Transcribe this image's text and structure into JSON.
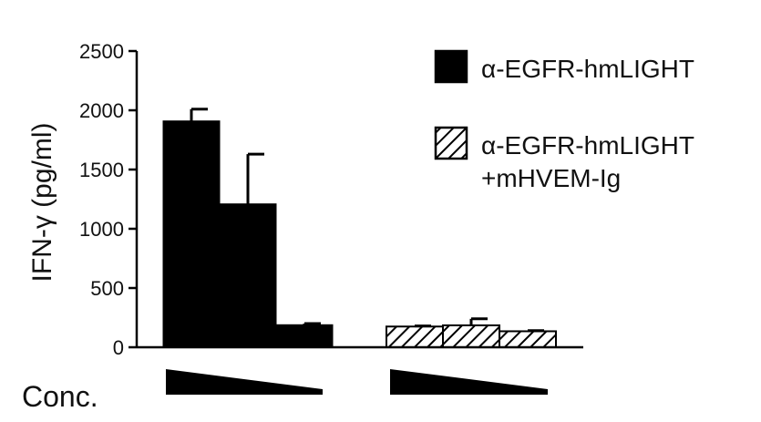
{
  "chart_data": {
    "type": "bar",
    "ylabel": "IFN-γ (pg/ml)",
    "xlabel": "Conc.",
    "ylim": [
      0,
      2500
    ],
    "yticks": [
      0,
      500,
      1000,
      1500,
      2000,
      2500
    ],
    "groups": [
      {
        "series": "α-EGFR-hmLIGHT",
        "values": [
          1910,
          1210,
          190
        ],
        "errors": [
          100,
          420,
          10
        ]
      },
      {
        "series": "α-EGFR-hmLIGHT +mHVEM-Ig",
        "values": [
          175,
          185,
          135
        ],
        "errors": [
          5,
          55,
          5
        ]
      }
    ],
    "legend": {
      "position": "top-right",
      "entries": [
        {
          "label": "α-EGFR-hmLIGHT",
          "fill": "solid",
          "label_lines": [
            "α-EGFR-hmLIGHT"
          ]
        },
        {
          "label": "α-EGFR-hmLIGHT +mHVEM-Ig",
          "fill": "hatched",
          "label_lines": [
            "α-EGFR-hmLIGHT",
            "+mHVEM-Ig"
          ]
        }
      ]
    },
    "concentration_indicator": "decreasing",
    "grid": false
  },
  "colors": {
    "bar": "#000000",
    "hatch_bg": "#ffffff",
    "axis": "#000000"
  }
}
